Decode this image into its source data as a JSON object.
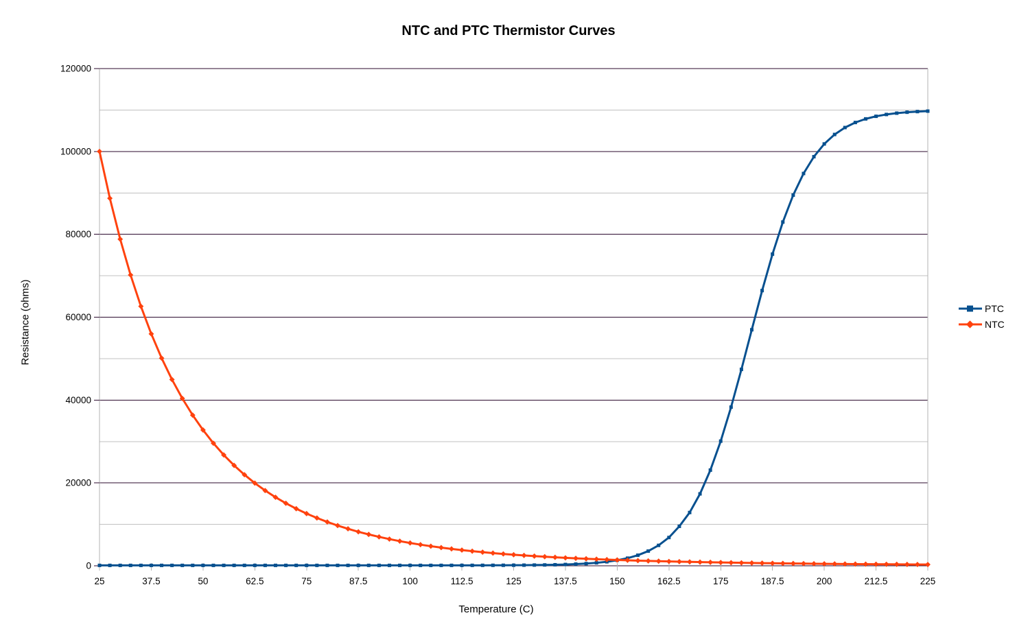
{
  "title": "NTC and PTC Thermistor Curves",
  "x_axis": {
    "title": "Temperature (C)",
    "tick_labels": [
      "25",
      "37.5",
      "50",
      "62.5",
      "75",
      "87.5",
      "100",
      "112.5",
      "125",
      "137.5",
      "150",
      "162.5",
      "175",
      "187.5",
      "200",
      "212.5",
      "225"
    ]
  },
  "y_axis": {
    "title": "Resistance (ohms)",
    "tick_labels": [
      "0",
      "20000",
      "40000",
      "60000",
      "80000",
      "100000",
      "120000"
    ]
  },
  "legend": {
    "position": "right",
    "items": [
      {
        "label": "PTC",
        "color": "#07508f",
        "marker": "square"
      },
      {
        "label": "NTC",
        "color": "#ff420e",
        "marker": "diamond"
      }
    ]
  },
  "colors": {
    "ptc": "#07508f",
    "ntc": "#ff420e",
    "grid_major": "#2b0a2e",
    "grid_minor": "#c0c0c0",
    "axis": "#b3b3b3",
    "text": "#000000",
    "background": "#ffffff"
  },
  "chart_data": {
    "type": "line",
    "title": "NTC and PTC Thermistor Curves",
    "xlabel": "Temperature (C)",
    "ylabel": "Resistance (ohms)",
    "xlim": [
      25,
      225
    ],
    "ylim": [
      0,
      120000
    ],
    "x_tick_step": 12.5,
    "y_major_step": 20000,
    "y_minor_step": 10000,
    "grid": "horizontal major (dark) + minor (light gray), no vertical gridlines",
    "legend_position": "right",
    "x": [
      25,
      27.5,
      30,
      32.5,
      35,
      37.5,
      40,
      42.5,
      45,
      47.5,
      50,
      52.5,
      55,
      57.5,
      60,
      62.5,
      65,
      67.5,
      70,
      72.5,
      75,
      77.5,
      80,
      82.5,
      85,
      87.5,
      90,
      92.5,
      95,
      97.5,
      100,
      102.5,
      105,
      107.5,
      110,
      112.5,
      115,
      117.5,
      120,
      122.5,
      125,
      127.5,
      130,
      132.5,
      135,
      137.5,
      140,
      142.5,
      145,
      147.5,
      150,
      152.5,
      155,
      157.5,
      160,
      162.5,
      165,
      167.5,
      170,
      172.5,
      175,
      177.5,
      180,
      182.5,
      185,
      187.5,
      190,
      192.5,
      195,
      197.5,
      200,
      202.5,
      205,
      207.5,
      210,
      212.5,
      215,
      217.5,
      220,
      222.5,
      225
    ],
    "series": [
      {
        "name": "PTC",
        "color": "#07508f",
        "marker": "square",
        "values": [
          100,
          100,
          100,
          100,
          100,
          100,
          100,
          100,
          100,
          100,
          100,
          100,
          100,
          100,
          100,
          100,
          100,
          100,
          100,
          100,
          100,
          100,
          100,
          100,
          100,
          100,
          101,
          101,
          101,
          101,
          101,
          102,
          102,
          103,
          105,
          107,
          109,
          113,
          119,
          127,
          138,
          153,
          176,
          207,
          252,
          316,
          407,
          535,
          715,
          971,
          1332,
          1840,
          2553,
          3546,
          4929,
          6830,
          9521,
          12860,
          17363,
          23087,
          30091,
          38292,
          47405,
          56973,
          66425,
          75216,
          82964,
          89460,
          94680,
          98735,
          101812,
          104098,
          105768,
          106988,
          107856,
          108483,
          108923,
          109242,
          109465,
          109622,
          109734
        ]
      },
      {
        "name": "NTC",
        "color": "#ff420e",
        "marker": "diamond",
        "values": [
          100000,
          88700,
          78830,
          70190,
          62620,
          55970,
          50120,
          44950,
          40390,
          36350,
          32770,
          29580,
          26750,
          24230,
          21980,
          19960,
          18160,
          16540,
          15090,
          13780,
          12600,
          11540,
          10580,
          9710,
          8930,
          8210,
          7570,
          6980,
          6440,
          5950,
          5510,
          5100,
          4730,
          4390,
          4080,
          3790,
          3530,
          3290,
          3070,
          2860,
          2670,
          2500,
          2340,
          2190,
          2050,
          1920,
          1810,
          1700,
          1600,
          1500,
          1410,
          1330,
          1250,
          1180,
          1120,
          1050,
          1000,
          943,
          892,
          845,
          801,
          759,
          720,
          684,
          649,
          617,
          587,
          558,
          532,
          506,
          483,
          460,
          439,
          419,
          400,
          382,
          365,
          349,
          334,
          319,
          305
        ]
      }
    ]
  }
}
